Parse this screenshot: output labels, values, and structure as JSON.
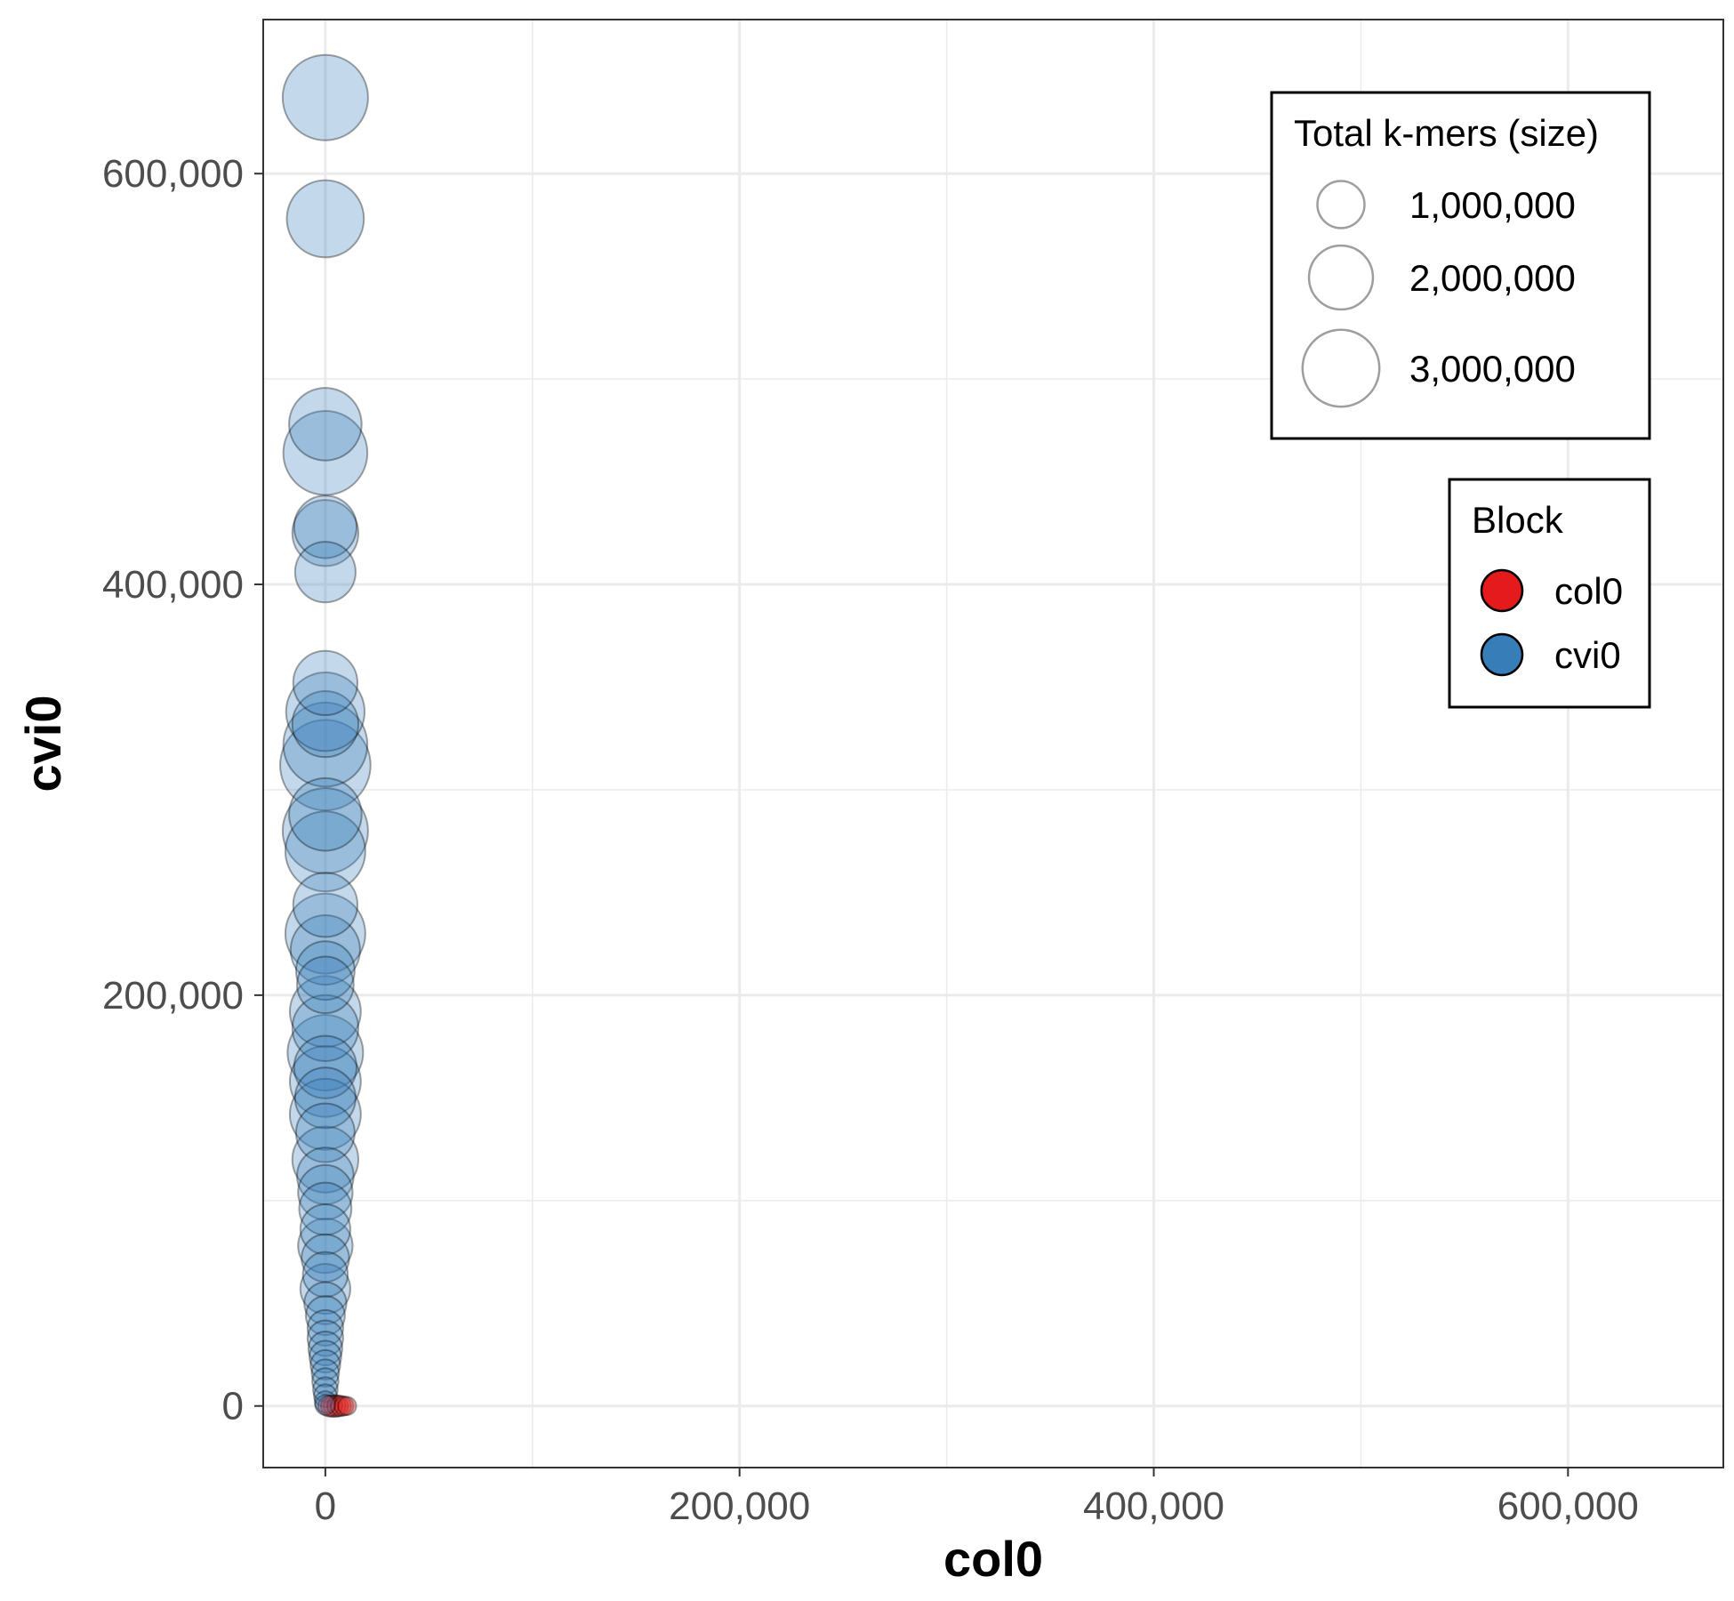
{
  "chart_data": {
    "type": "scatter",
    "title": "",
    "xlabel": "col0",
    "ylabel": "cvi0",
    "xlim": [
      -30000,
      675000
    ],
    "ylim": [
      -30000,
      675000
    ],
    "x_ticks": [
      0,
      200000,
      400000,
      600000
    ],
    "x_tick_labels": [
      "0",
      "200,000",
      "400,000",
      "600,000"
    ],
    "y_ticks": [
      0,
      200000,
      400000,
      600000
    ],
    "y_tick_labels": [
      "0",
      "200,000",
      "400,000",
      "600,000"
    ],
    "grid": true,
    "size_legend": {
      "title": "Total k-mers (size)",
      "placement": "top-right",
      "items": [
        {
          "label": "1,000,000",
          "value": 1000000
        },
        {
          "label": "2,000,000",
          "value": 2000000
        },
        {
          "label": "3,000,000",
          "value": 3000000
        }
      ]
    },
    "color_legend": {
      "title": "Block",
      "placement": "right",
      "items": [
        {
          "label": "col0",
          "color": "#e41a1c"
        },
        {
          "label": "cvi0",
          "color": "#377eb8"
        }
      ]
    },
    "series": [
      {
        "name": "cvi0",
        "color": "#377eb8",
        "points": [
          [
            0,
            637000,
            3000000
          ],
          [
            0,
            578000,
            2400000
          ],
          [
            0,
            478000,
            2100000
          ],
          [
            0,
            464000,
            2900000
          ],
          [
            0,
            428000,
            1500000
          ],
          [
            0,
            425000,
            1700000
          ],
          [
            0,
            406000,
            1400000
          ],
          [
            0,
            352000,
            1600000
          ],
          [
            0,
            338000,
            2500000
          ],
          [
            0,
            332000,
            1700000
          ],
          [
            0,
            322000,
            2900000
          ],
          [
            0,
            312000,
            3400000
          ],
          [
            0,
            288000,
            2100000
          ],
          [
            0,
            280000,
            3000000
          ],
          [
            0,
            270000,
            2600000
          ],
          [
            0,
            244000,
            1600000
          ],
          [
            0,
            230000,
            2600000
          ],
          [
            0,
            222000,
            1900000
          ],
          [
            0,
            212000,
            1300000
          ],
          [
            0,
            205000,
            1200000
          ],
          [
            0,
            192000,
            2000000
          ],
          [
            0,
            184000,
            1700000
          ],
          [
            0,
            172000,
            2300000
          ],
          [
            0,
            165000,
            1500000
          ],
          [
            0,
            158000,
            2000000
          ],
          [
            0,
            150000,
            1400000
          ],
          [
            0,
            142000,
            2000000
          ],
          [
            0,
            133000,
            1300000
          ],
          [
            0,
            120000,
            1700000
          ],
          [
            0,
            112000,
            1200000
          ],
          [
            0,
            104000,
            1100000
          ],
          [
            0,
            96000,
            1000000
          ],
          [
            0,
            86000,
            900000
          ],
          [
            0,
            78000,
            1100000
          ],
          [
            0,
            72000,
            800000
          ],
          [
            0,
            64000,
            700000
          ],
          [
            0,
            57000,
            900000
          ],
          [
            0,
            50000,
            600000
          ],
          [
            0,
            44000,
            500000
          ],
          [
            0,
            38000,
            400000
          ],
          [
            0,
            33000,
            400000
          ],
          [
            0,
            28000,
            350000
          ],
          [
            0,
            24000,
            300000
          ],
          [
            0,
            20000,
            250000
          ],
          [
            0,
            16000,
            200000
          ],
          [
            0,
            12000,
            180000
          ],
          [
            0,
            8000,
            150000
          ],
          [
            0,
            5000,
            120000
          ],
          [
            0,
            2000,
            100000
          ],
          [
            0,
            500,
            80000
          ]
        ]
      },
      {
        "name": "col0",
        "color": "#e41a1c",
        "points": [
          [
            1500,
            0,
            90000
          ],
          [
            3000,
            0,
            100000
          ],
          [
            4500,
            0,
            110000
          ],
          [
            6000,
            0,
            95000
          ],
          [
            7500,
            0,
            85000
          ],
          [
            9000,
            0,
            70000
          ],
          [
            10500,
            0,
            60000
          ]
        ]
      }
    ]
  }
}
